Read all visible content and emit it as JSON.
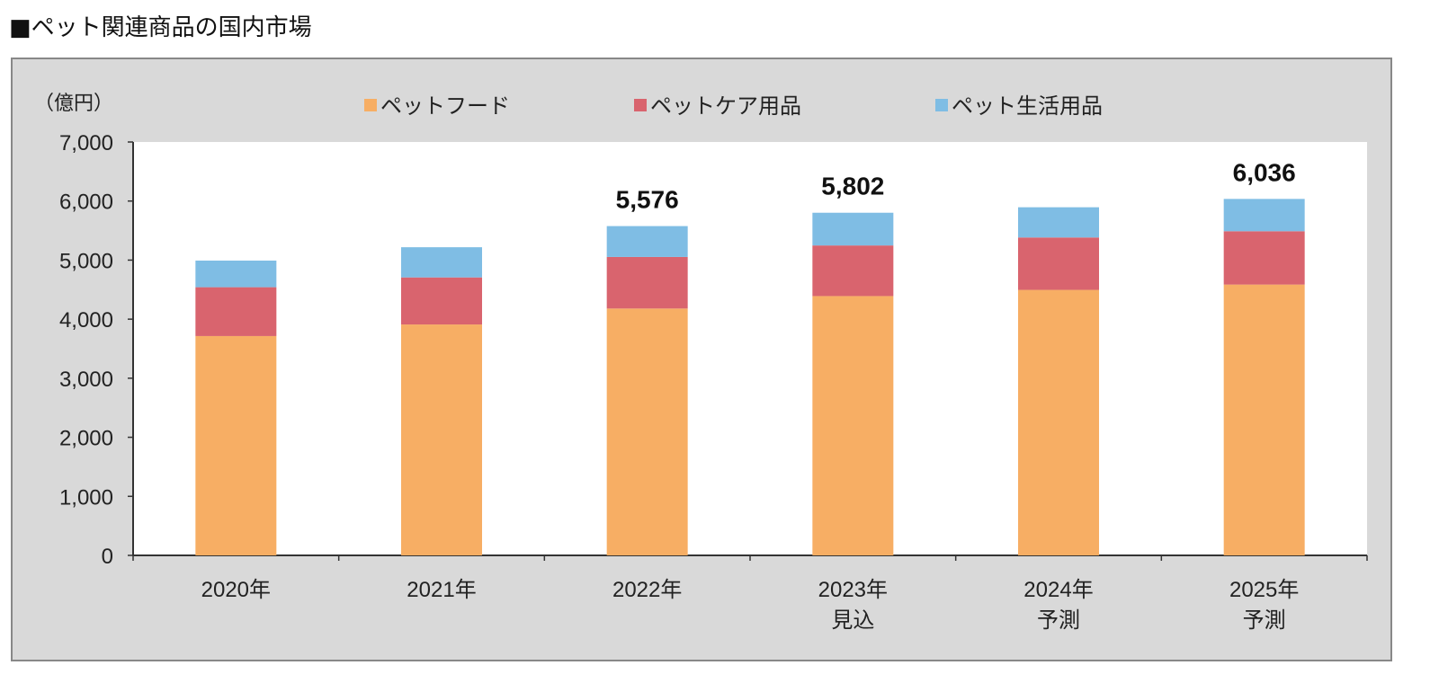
{
  "title": "■ペット関連商品の国内市場",
  "chart_data": {
    "type": "bar",
    "stacked": true,
    "unit_label": "（億円）",
    "categories": [
      [
        "2020年"
      ],
      [
        "2021年"
      ],
      [
        "2022年"
      ],
      [
        "2023年",
        "見込"
      ],
      [
        "2024年",
        "予測"
      ],
      [
        "2025年",
        "予測"
      ]
    ],
    "series": [
      {
        "name": "ペットフード",
        "color": "#f7ae64",
        "values": [
          3714,
          3910,
          4180,
          4391,
          4496,
          4586
        ]
      },
      {
        "name": "ペットケア用品",
        "color": "#d9646e",
        "values": [
          827,
          797,
          873,
          857,
          887,
          903
        ]
      },
      {
        "name": "ペット生活用品",
        "color": "#7fbde4",
        "values": [
          451,
          511,
          523,
          554,
          512,
          547
        ]
      }
    ],
    "total_labels": [
      "",
      "",
      "5,576",
      "5,802",
      "",
      "6,036"
    ],
    "ylim": [
      0,
      7000
    ],
    "yticks": [
      0,
      1000,
      2000,
      3000,
      4000,
      5000,
      6000,
      7000
    ],
    "ytick_labels": [
      "0",
      "1,000",
      "2,000",
      "3,000",
      "4,000",
      "5,000",
      "6,000",
      "7,000"
    ],
    "legend_position": "top",
    "grid": false
  }
}
